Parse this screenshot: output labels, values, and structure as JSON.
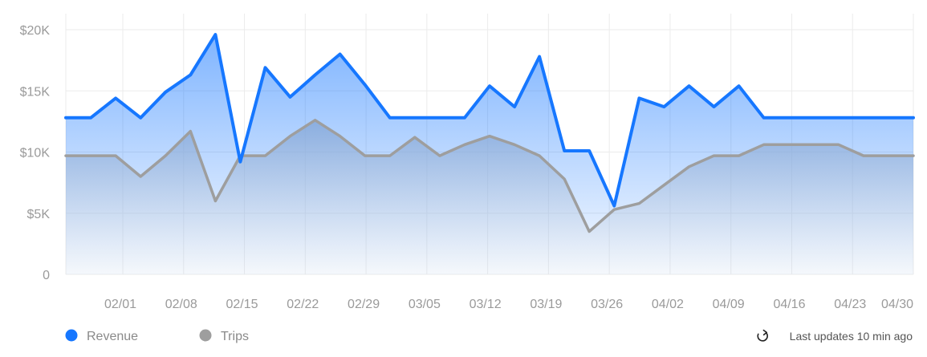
{
  "chart_data": {
    "type": "area",
    "x": [
      "01/25",
      "01/26",
      "01/28",
      "01/31",
      "02/03",
      "02/06",
      "02/09",
      "02/12",
      "02/15",
      "02/18",
      "02/21",
      "02/24",
      "02/27",
      "02/28",
      "03/02",
      "03/05",
      "03/08",
      "03/11",
      "03/14",
      "03/17",
      "03/20",
      "03/23",
      "03/26",
      "03/29",
      "04/01",
      "04/04",
      "04/05",
      "04/08",
      "04/11",
      "04/14",
      "04/17",
      "04/21",
      "04/24",
      "04/27",
      "04/30"
    ],
    "series": [
      {
        "name": "Revenue",
        "color": "#1677ff",
        "values": [
          12800,
          12800,
          14400,
          12800,
          14900,
          16300,
          19600,
          9200,
          16900,
          14500,
          16300,
          18000,
          15500,
          12800,
          12800,
          12800,
          12800,
          15400,
          13700,
          17800,
          10100,
          10100,
          5600,
          14400,
          13700,
          15400,
          13700,
          15400,
          12800,
          12800,
          12800,
          12800,
          12800,
          12800,
          12800
        ]
      },
      {
        "name": "Trips",
        "color": "#9e9e9e",
        "values": [
          9700,
          9700,
          9700,
          8000,
          9700,
          11700,
          6000,
          9700,
          9700,
          11300,
          12600,
          11300,
          9700,
          9700,
          11200,
          9700,
          10600,
          11300,
          10600,
          9700,
          7800,
          3500,
          5300,
          5800,
          7300,
          8800,
          9700,
          9700,
          10600,
          10600,
          10600,
          10600,
          9700,
          9700,
          9700
        ]
      }
    ],
    "x_tick_labels": [
      "02/01",
      "02/08",
      "02/15",
      "02/22",
      "02/29",
      "03/05",
      "03/12",
      "03/19",
      "03/26",
      "04/02",
      "04/09",
      "04/16",
      "04/23",
      "04/30"
    ],
    "y_tick_labels": [
      "0",
      "$5K",
      "$10K",
      "$15K",
      "$20K"
    ],
    "ylim": [
      0,
      20000
    ],
    "grid": true,
    "legend": "bottom-left",
    "title": "",
    "xlabel": "",
    "ylabel": ""
  },
  "footer": {
    "refresh_icon": "refresh-icon",
    "updated_text": "Last updates 10 min ago"
  }
}
